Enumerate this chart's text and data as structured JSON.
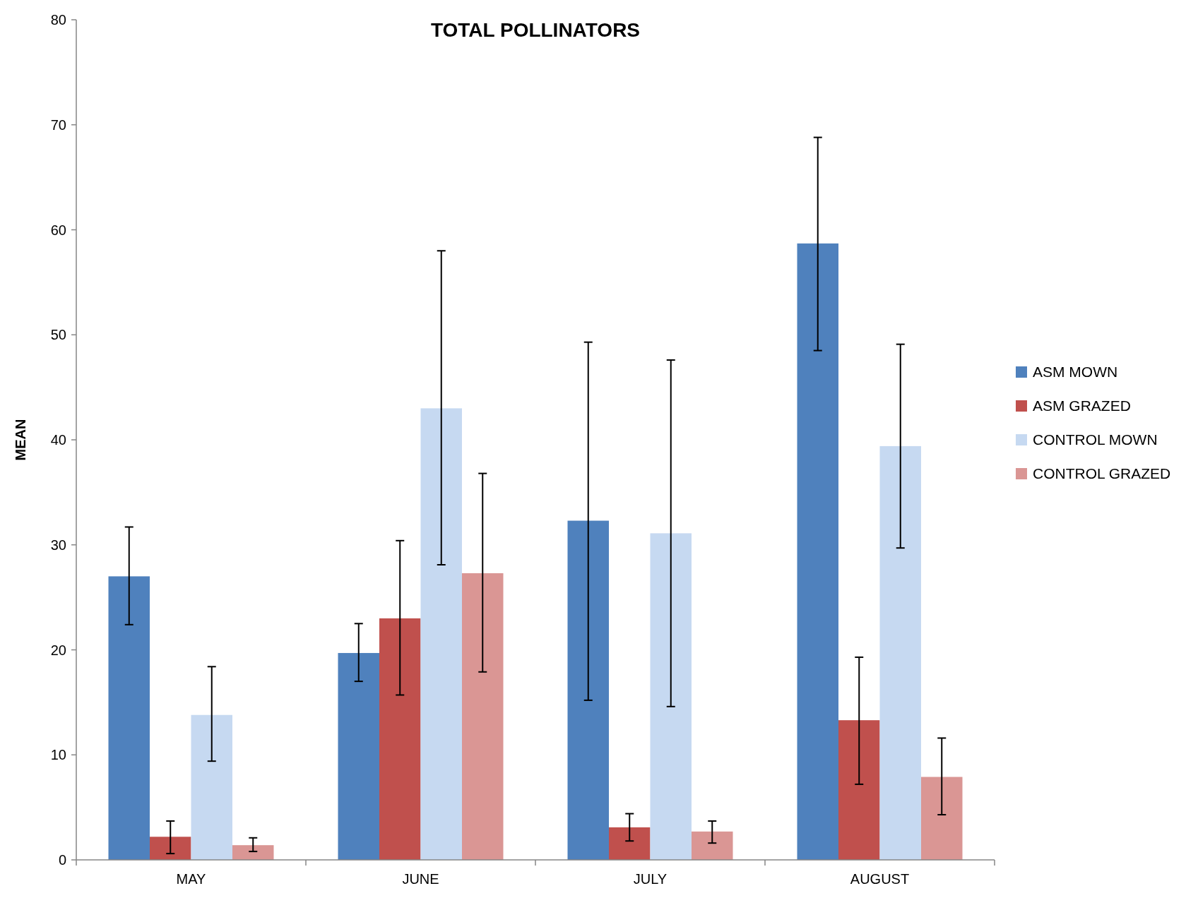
{
  "chart_data": {
    "type": "bar",
    "title": "TOTAL POLLINATORS",
    "ylabel": "MEAN",
    "categories": [
      "MAY",
      "JUNE",
      "JULY",
      "AUGUST"
    ],
    "series": [
      {
        "name": "ASM MOWN",
        "color": "#4f81bd",
        "values": [
          27.0,
          19.7,
          32.3,
          58.7
        ],
        "errors": [
          [
            22.4,
            31.7
          ],
          [
            17.0,
            22.5
          ],
          [
            15.2,
            49.3
          ],
          [
            48.5,
            68.8
          ]
        ]
      },
      {
        "name": "ASM GRAZED",
        "color": "#c0504d",
        "values": [
          2.2,
          23.0,
          3.1,
          13.3
        ],
        "errors": [
          [
            0.6,
            3.7
          ],
          [
            15.7,
            30.4
          ],
          [
            1.8,
            4.4
          ],
          [
            7.2,
            19.3
          ]
        ]
      },
      {
        "name": "CONTROL MOWN",
        "color": "#c6d9f1",
        "values": [
          13.8,
          43.0,
          31.1,
          39.4
        ],
        "errors": [
          [
            9.4,
            18.4
          ],
          [
            28.1,
            58.0
          ],
          [
            14.6,
            47.6
          ],
          [
            29.7,
            49.1
          ]
        ]
      },
      {
        "name": "CONTROL GRAZED",
        "color": "#da9694",
        "values": [
          1.4,
          27.3,
          2.7,
          7.9
        ],
        "errors": [
          [
            0.8,
            2.1
          ],
          [
            17.9,
            36.8
          ],
          [
            1.6,
            3.7
          ],
          [
            4.3,
            11.6
          ]
        ]
      }
    ],
    "ylim": [
      0,
      80
    ],
    "yticks": [
      0,
      10,
      20,
      30,
      40,
      50,
      60,
      70,
      80
    ],
    "grid": false,
    "legend": "right"
  }
}
